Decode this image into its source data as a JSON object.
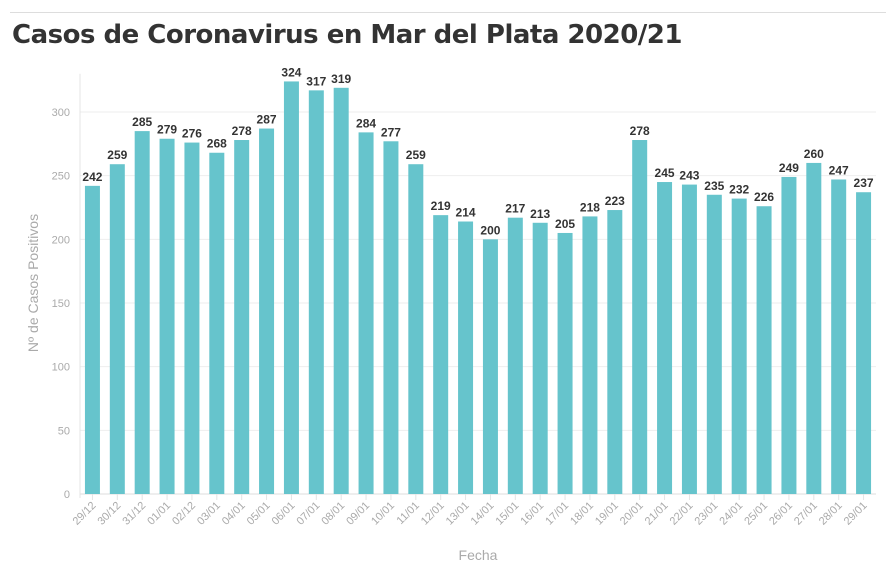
{
  "title": "Casos de Coronavirus en Mar del Plata 2020/21",
  "chart_data": {
    "type": "bar",
    "title": "Casos de Coronavirus en Mar del Plata 2020/21",
    "xlabel": "Fecha",
    "ylabel": "Nº de Casos Positivos",
    "ylim": [
      0,
      330
    ],
    "yticks": [
      0,
      50,
      100,
      150,
      200,
      250,
      300
    ],
    "grid": true,
    "color": "#66c4cc",
    "categories": [
      "29/12",
      "30/12",
      "31/12",
      "01/01",
      "02/12",
      "03/01",
      "04/01",
      "05/01",
      "06/01",
      "07/01",
      "08/01",
      "09/01",
      "10/01",
      "11/01",
      "12/01",
      "13/01",
      "14/01",
      "15/01",
      "16/01",
      "17/01",
      "18/01",
      "19/01",
      "20/01",
      "21/01",
      "22/01",
      "23/01",
      "24/01",
      "25/01",
      "26/01",
      "27/01",
      "28/01",
      "29/01"
    ],
    "values": [
      242,
      259,
      285,
      279,
      276,
      268,
      278,
      287,
      324,
      317,
      319,
      284,
      277,
      259,
      219,
      214,
      200,
      217,
      213,
      205,
      218,
      223,
      278,
      245,
      243,
      235,
      232,
      226,
      249,
      260,
      247,
      237
    ]
  }
}
